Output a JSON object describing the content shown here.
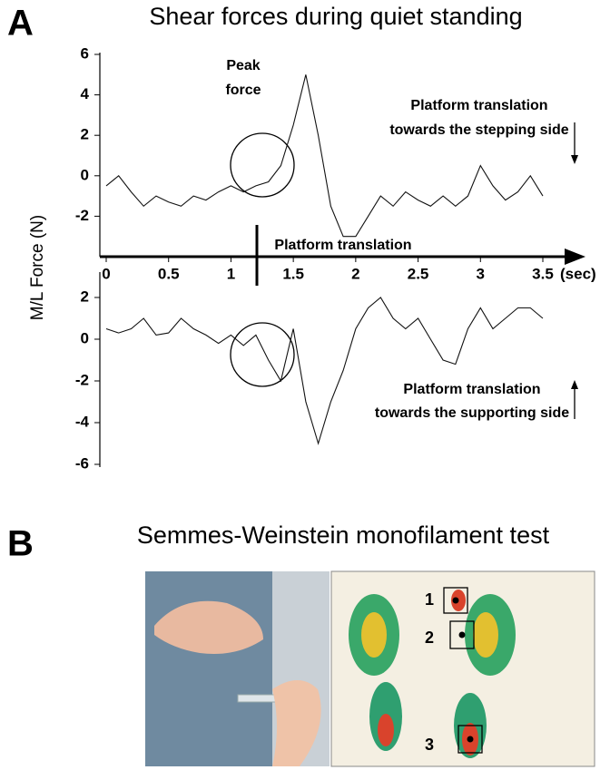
{
  "panels": [
    {
      "label": "A",
      "title": "Shear forces during quiet standing"
    },
    {
      "label": "B",
      "title": "Semmes-Weinstein monofilament test",
      "sites": [
        "1",
        "2",
        "3"
      ]
    }
  ],
  "chart_data": [
    {
      "type": "line",
      "ylabel": "M/L Force (N)",
      "xlabel": "(sec)",
      "color": "#111111",
      "x": [
        0,
        0.1,
        0.2,
        0.3,
        0.4,
        0.5,
        0.6,
        0.7,
        0.8,
        0.9,
        1.0,
        1.1,
        1.2,
        1.3,
        1.4,
        1.5,
        1.6,
        1.7,
        1.8,
        1.9,
        2.0,
        2.1,
        2.2,
        2.3,
        2.4,
        2.5,
        2.6,
        2.7,
        2.8,
        2.9,
        3.0,
        3.1,
        3.2,
        3.3,
        3.4,
        3.5
      ],
      "values": [
        -0.5,
        0,
        -0.8,
        -1.5,
        -1,
        -1.3,
        -1.5,
        -1,
        -1.2,
        -0.8,
        -0.5,
        -0.8,
        -0.5,
        -0.3,
        0.5,
        2.5,
        5,
        2,
        -1.5,
        -3,
        -3,
        -2,
        -1,
        -1.5,
        -0.8,
        -1.2,
        -1.5,
        -1,
        -1.5,
        -1,
        0.5,
        -0.5,
        -1.2,
        -0.8,
        0,
        -1
      ],
      "xlim": [
        0,
        3.5
      ],
      "xticks": [
        0,
        0.5,
        1,
        1.5,
        2,
        2.5,
        3,
        3.5
      ],
      "ylim": [
        -4,
        6
      ],
      "yticks": [
        6,
        4,
        2,
        0,
        -2
      ],
      "annotations": [
        "Peak",
        "force",
        "Platform translation",
        "towards the stepping side",
        "Platform translation"
      ]
    },
    {
      "type": "line",
      "color": "#111111",
      "x": [
        0,
        0.1,
        0.2,
        0.3,
        0.4,
        0.5,
        0.6,
        0.7,
        0.8,
        0.9,
        1.0,
        1.1,
        1.2,
        1.3,
        1.4,
        1.5,
        1.6,
        1.7,
        1.8,
        1.9,
        2.0,
        2.1,
        2.2,
        2.3,
        2.4,
        2.5,
        2.6,
        2.7,
        2.8,
        2.9,
        3.0,
        3.1,
        3.2,
        3.3,
        3.4,
        3.5
      ],
      "values": [
        0.5,
        0.3,
        0.5,
        1,
        0.2,
        0.3,
        1,
        0.5,
        0.2,
        -0.2,
        0.2,
        -0.3,
        0.2,
        -1,
        -2,
        0.5,
        -3,
        -5,
        -3,
        -1.5,
        0.5,
        1.5,
        2,
        1,
        0.5,
        1,
        0,
        -1,
        -1.2,
        0.5,
        1.5,
        0.5,
        1,
        1.5,
        1.5,
        1
      ],
      "xlim": [
        0,
        3.5
      ],
      "ylim": [
        -6,
        2
      ],
      "yticks": [
        2,
        0,
        -2,
        -4,
        -6
      ],
      "annotations": [
        "Platform translation",
        "towards the supporting side"
      ]
    }
  ]
}
